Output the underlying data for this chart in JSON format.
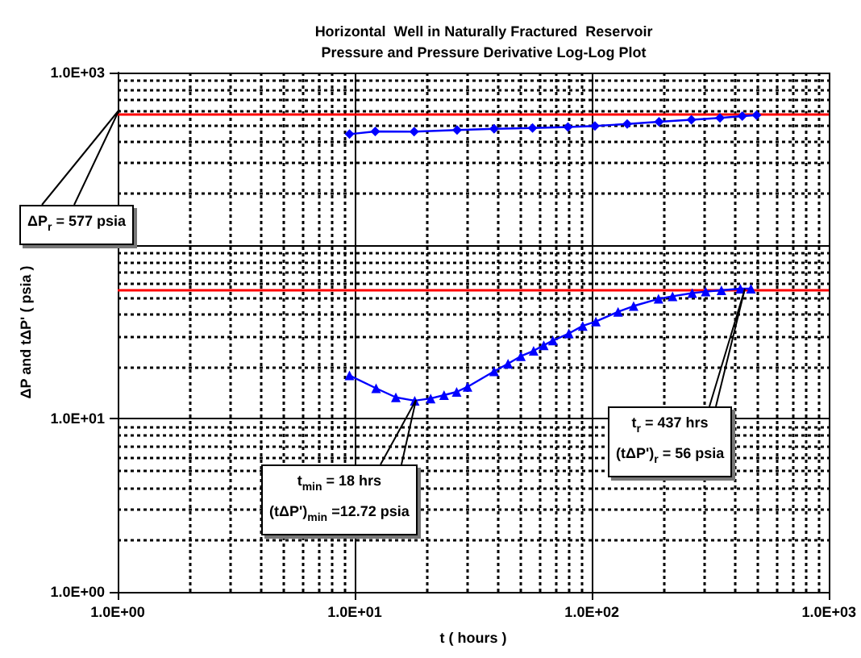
{
  "chart_data": {
    "type": "line",
    "title": "Horizontal  Well in Naturally Fractured  Reservoir\nPressure and Pressure Derivative Log-Log Plot",
    "xlabel": "t ( hours )",
    "ylabel": "ΔP and tΔP' ( psia )",
    "log": "xy",
    "grid": true,
    "xlim": [
      1,
      1000
    ],
    "ylim": [
      1,
      1000
    ],
    "xticks": [
      {
        "value": 1,
        "label": "1.0E+00"
      },
      {
        "value": 10,
        "label": "1.0E+01"
      },
      {
        "value": 100,
        "label": "1.0E+02"
      },
      {
        "value": 1000,
        "label": "1.0E+03"
      }
    ],
    "yticks": [
      {
        "value": 1,
        "label": "1.0E+00"
      },
      {
        "value": 10,
        "label": "1.0E+01"
      },
      {
        "value": 100,
        "label": null
      },
      {
        "value": 1000,
        "label": "1.0E+03"
      }
    ],
    "series": [
      {
        "color": "#0000ff",
        "marker": "diamond",
        "x": [
          9.5,
          12.2,
          17.8,
          27,
          38.7,
          56.2,
          79.3,
          103,
          141,
          192,
          263,
          347,
          431,
          495
        ],
        "values": [
          441,
          457,
          456,
          466,
          473,
          478,
          485,
          491,
          505,
          520,
          534,
          547,
          560,
          568
        ]
      },
      {
        "color": "#0000ff",
        "marker": "triangle",
        "x": [
          9.5,
          12.3,
          14.9,
          17.9,
          20.9,
          23.8,
          26.9,
          29.9,
          38.7,
          44.3,
          50.2,
          56.8,
          62.7,
          68.5,
          80,
          91.5,
          104,
          129,
          150,
          191,
          219,
          265,
          302,
          352,
          423,
          469
        ],
        "values": [
          17.8,
          15.0,
          13.3,
          12.72,
          13.1,
          13.7,
          14.3,
          15.3,
          18.8,
          20.8,
          23,
          24.7,
          26.6,
          28.3,
          31.1,
          34.4,
          36.5,
          41.5,
          44.8,
          49.3,
          51,
          53.2,
          54.3,
          55.2,
          56.4,
          56.4
        ]
      }
    ],
    "ref_lines": [
      {
        "axis": "y",
        "value": 577,
        "color": "#ff0000",
        "line_style": "solid"
      },
      {
        "axis": "y",
        "value": 56,
        "color": "#ff0000",
        "line_style": "solid"
      }
    ],
    "annotations": [
      "ΔP$_{r}$ = 577 psia",
      "t$_{min}$ = 18 hrs",
      "(tΔP')$_{min}$ =12.72 psia",
      "t$_{r}$ = 437 hrs",
      "(tΔP')$_{r}$ = 56 psia"
    ]
  }
}
